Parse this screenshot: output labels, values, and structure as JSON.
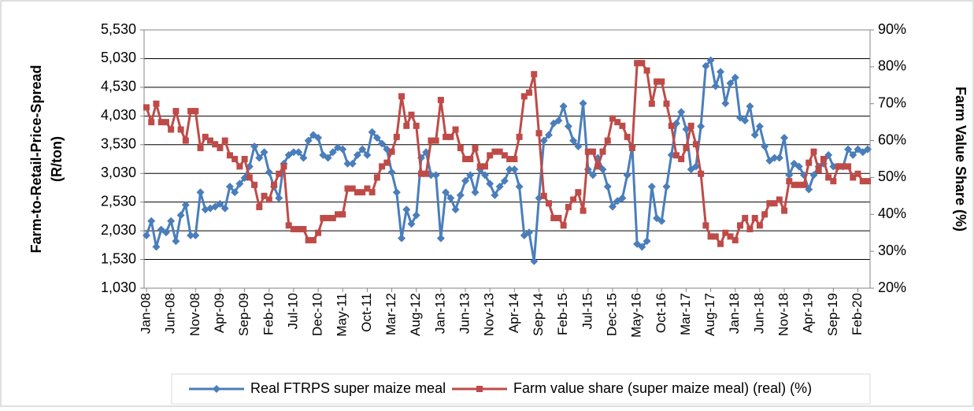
{
  "chart_data": {
    "type": "line",
    "ylabel": [
      "Farm-to-Retail-Price-Spread",
      "(R/ton)"
    ],
    "y2label": "Farm Value Share (%)",
    "categories": [
      "Jan-08",
      null,
      null,
      null,
      null,
      "Jun-08",
      null,
      null,
      null,
      null,
      "Nov-08",
      null,
      null,
      null,
      null,
      "Apr-09",
      null,
      null,
      null,
      null,
      "Sep-09",
      null,
      null,
      null,
      null,
      "Feb-10",
      null,
      null,
      null,
      null,
      "Jul-10",
      null,
      null,
      null,
      null,
      "Dec-10",
      null,
      null,
      null,
      null,
      "May-11",
      null,
      null,
      null,
      null,
      "Oct-11",
      null,
      null,
      null,
      null,
      "Mar-12",
      null,
      null,
      null,
      null,
      "Aug-12",
      null,
      null,
      null,
      null,
      "Jan-13",
      null,
      null,
      null,
      null,
      "Jun-13",
      null,
      null,
      null,
      null,
      "Nov-13",
      null,
      null,
      null,
      null,
      "Apr-14",
      null,
      null,
      null,
      null,
      "Sep-14",
      null,
      null,
      null,
      null,
      "Feb-15",
      null,
      null,
      null,
      null,
      "Jul-15",
      null,
      null,
      null,
      null,
      "Dec-15",
      null,
      null,
      null,
      null,
      "May-16",
      null,
      null,
      null,
      null,
      "Oct-16",
      null,
      null,
      null,
      null,
      "Mar-17",
      null,
      null,
      null,
      null,
      "Aug-17",
      null,
      null,
      null,
      null,
      "Jan-18",
      null,
      null,
      null,
      null,
      "Jun-18",
      null,
      null,
      null,
      null,
      "Nov-18",
      null,
      null,
      null,
      null,
      "Apr-19",
      null,
      null,
      null,
      null,
      "Sep-19",
      null,
      null,
      null,
      null,
      "Feb-20",
      null,
      null
    ],
    "series": [
      {
        "name": "Real FTRPS super maize meal",
        "color": "#4a7ebb",
        "marker": "diamond",
        "values": [
          1950,
          2200,
          1750,
          2050,
          2000,
          2200,
          1850,
          2300,
          2480,
          1950,
          1950,
          2700,
          2400,
          2420,
          2450,
          2500,
          2420,
          2800,
          2700,
          2850,
          2950,
          3150,
          3500,
          3300,
          3400,
          3050,
          2800,
          2600,
          3200,
          3350,
          3400,
          3400,
          3300,
          3600,
          3700,
          3650,
          3350,
          3300,
          3400,
          3480,
          3450,
          3200,
          3200,
          3350,
          3450,
          3350,
          3750,
          3650,
          3550,
          3450,
          3050,
          2700,
          1900,
          2400,
          2150,
          2300,
          3300,
          3400,
          3000,
          3000,
          1900,
          2700,
          2600,
          2400,
          2650,
          2900,
          3000,
          2700,
          3100,
          3000,
          2850,
          2650,
          2800,
          2900,
          3100,
          3100,
          2800,
          1950,
          2000,
          1500,
          2600,
          3600,
          3700,
          3900,
          3950,
          4200,
          3850,
          3600,
          3500,
          4250,
          3100,
          3000,
          3300,
          3100,
          2800,
          2450,
          2550,
          2600,
          3000,
          3500,
          1800,
          1750,
          1850,
          2800,
          2250,
          2200,
          2800,
          3350,
          3900,
          4100,
          3800,
          3100,
          3150,
          3850,
          4900,
          5000,
          4550,
          4800,
          4250,
          4600,
          4700,
          4000,
          3950,
          4200,
          3700,
          3850,
          3500,
          3250,
          3300,
          3300,
          3650,
          3000,
          3200,
          3150,
          3000,
          2750,
          3000,
          3150,
          3200,
          3350,
          3150,
          3150,
          3150,
          3450,
          3350,
          3450,
          3400,
          3450
        ]
      },
      {
        "name": "Farm value share (super maize meal) (real) (%)",
        "color": "#be4b48",
        "marker": "square",
        "axis": "y2",
        "values": [
          69,
          65,
          70,
          65,
          65,
          63,
          68,
          63,
          60,
          68,
          68,
          58,
          61,
          60,
          59,
          58,
          60,
          56,
          55,
          53,
          55,
          50,
          48,
          42,
          45,
          44,
          48,
          51,
          53,
          37,
          36,
          36,
          36,
          33,
          33,
          35,
          39,
          39,
          39,
          40,
          40,
          47,
          47,
          46,
          46,
          47,
          46,
          50,
          53,
          54,
          57,
          61,
          72,
          64,
          67,
          64,
          51,
          51,
          60,
          60,
          71,
          61,
          61,
          63,
          58,
          55,
          55,
          58,
          53,
          53,
          56,
          57,
          57,
          56,
          55,
          55,
          61,
          72,
          73,
          78,
          62,
          45,
          43,
          39,
          39,
          37,
          42,
          44,
          46,
          41,
          57,
          57,
          53,
          57,
          60,
          66,
          65,
          64,
          61,
          58,
          81,
          81,
          79,
          70,
          76,
          76,
          70,
          64,
          56,
          55,
          58,
          64,
          59,
          51,
          37,
          34,
          34,
          32,
          35,
          34,
          33,
          37,
          39,
          36,
          39,
          37,
          40,
          43,
          43,
          44,
          41,
          49,
          48,
          48,
          48,
          54,
          57,
          52,
          55,
          50,
          49,
          53,
          53,
          53,
          50,
          51,
          49,
          49
        ]
      }
    ],
    "ylim": [
      1030,
      5530
    ],
    "yticks": [
      {
        "value": 1030,
        "label": "1,030"
      },
      {
        "value": 1530,
        "label": "1,530"
      },
      {
        "value": 2030,
        "label": "2,030"
      },
      {
        "value": 2530,
        "label": "2,530"
      },
      {
        "value": 3030,
        "label": "3,030"
      },
      {
        "value": 3530,
        "label": "3,530"
      },
      {
        "value": 4030,
        "label": "4,030"
      },
      {
        "value": 4530,
        "label": "4,530"
      },
      {
        "value": 5030,
        "label": "5,030"
      },
      {
        "value": 5530,
        "label": "5,530"
      }
    ],
    "y2lim": [
      20,
      90
    ],
    "y2ticks": [
      {
        "value": 20,
        "label": "20%"
      },
      {
        "value": 30,
        "label": "30%"
      },
      {
        "value": 40,
        "label": "40%"
      },
      {
        "value": 50,
        "label": "50%"
      },
      {
        "value": 60,
        "label": "60%"
      },
      {
        "value": 70,
        "label": "70%"
      },
      {
        "value": 80,
        "label": "80%"
      },
      {
        "value": 90,
        "label": "90%"
      }
    ],
    "grid": true,
    "legend": "bottom"
  }
}
